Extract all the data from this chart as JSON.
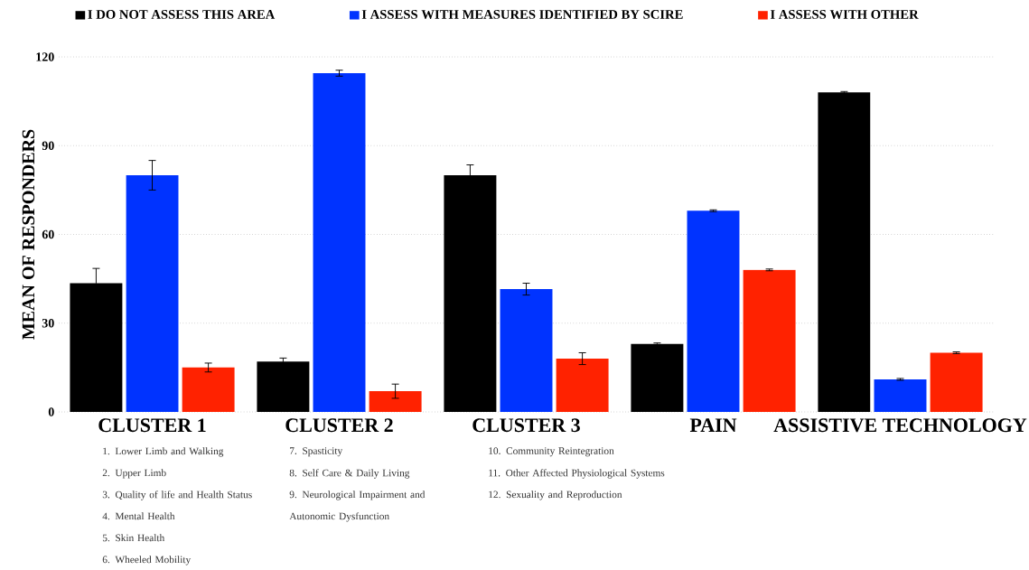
{
  "chart_data": {
    "type": "bar",
    "ylabel": "MEAN OF RESPONDERS",
    "categories": [
      "CLUSTER 1",
      "CLUSTER 2",
      "CLUSTER 3",
      "PAIN",
      "ASSISTIVE TECHNOLOGY"
    ],
    "series": [
      {
        "name": "I DO NOT ASSESS THIS AREA",
        "color": "#000000",
        "values": [
          43.5,
          17,
          80,
          23,
          108
        ],
        "errors": [
          5,
          1.2,
          3.5,
          0.3,
          0.3
        ]
      },
      {
        "name": "I ASSESS WITH MEASURES IDENTIFIED BY SCIRE",
        "color": "#0033ff",
        "values": [
          80,
          114.5,
          41.5,
          68,
          11
        ],
        "errors": [
          5,
          1,
          2,
          0.3,
          0.3
        ]
      },
      {
        "name": "I ASSESS WITH OTHER",
        "color": "#ff2200",
        "values": [
          15,
          7,
          18,
          48,
          20
        ],
        "errors": [
          1.5,
          2.4,
          2,
          0.3,
          0.3
        ]
      }
    ],
    "ylim": [
      0,
      120
    ],
    "yticks": [
      0,
      30,
      60,
      90,
      120
    ],
    "grid": "y",
    "legend": "top",
    "annotations": [
      "1.  Lower Limb and Walking",
      "2.  Upper Limb",
      "3.  Quality of life and Health Status",
      "4.  Mental Health",
      "5.  Skin Health",
      "6.  Wheeled Mobility",
      "7.  Spasticity",
      "8.  Self Care & Daily Living",
      "9.  Neurological Impairment and Autonomic Dysfunction",
      "10. Community Reintegration",
      "11. Other Affected Physiological Systems",
      "12. Sexuality and Reproduction"
    ]
  }
}
